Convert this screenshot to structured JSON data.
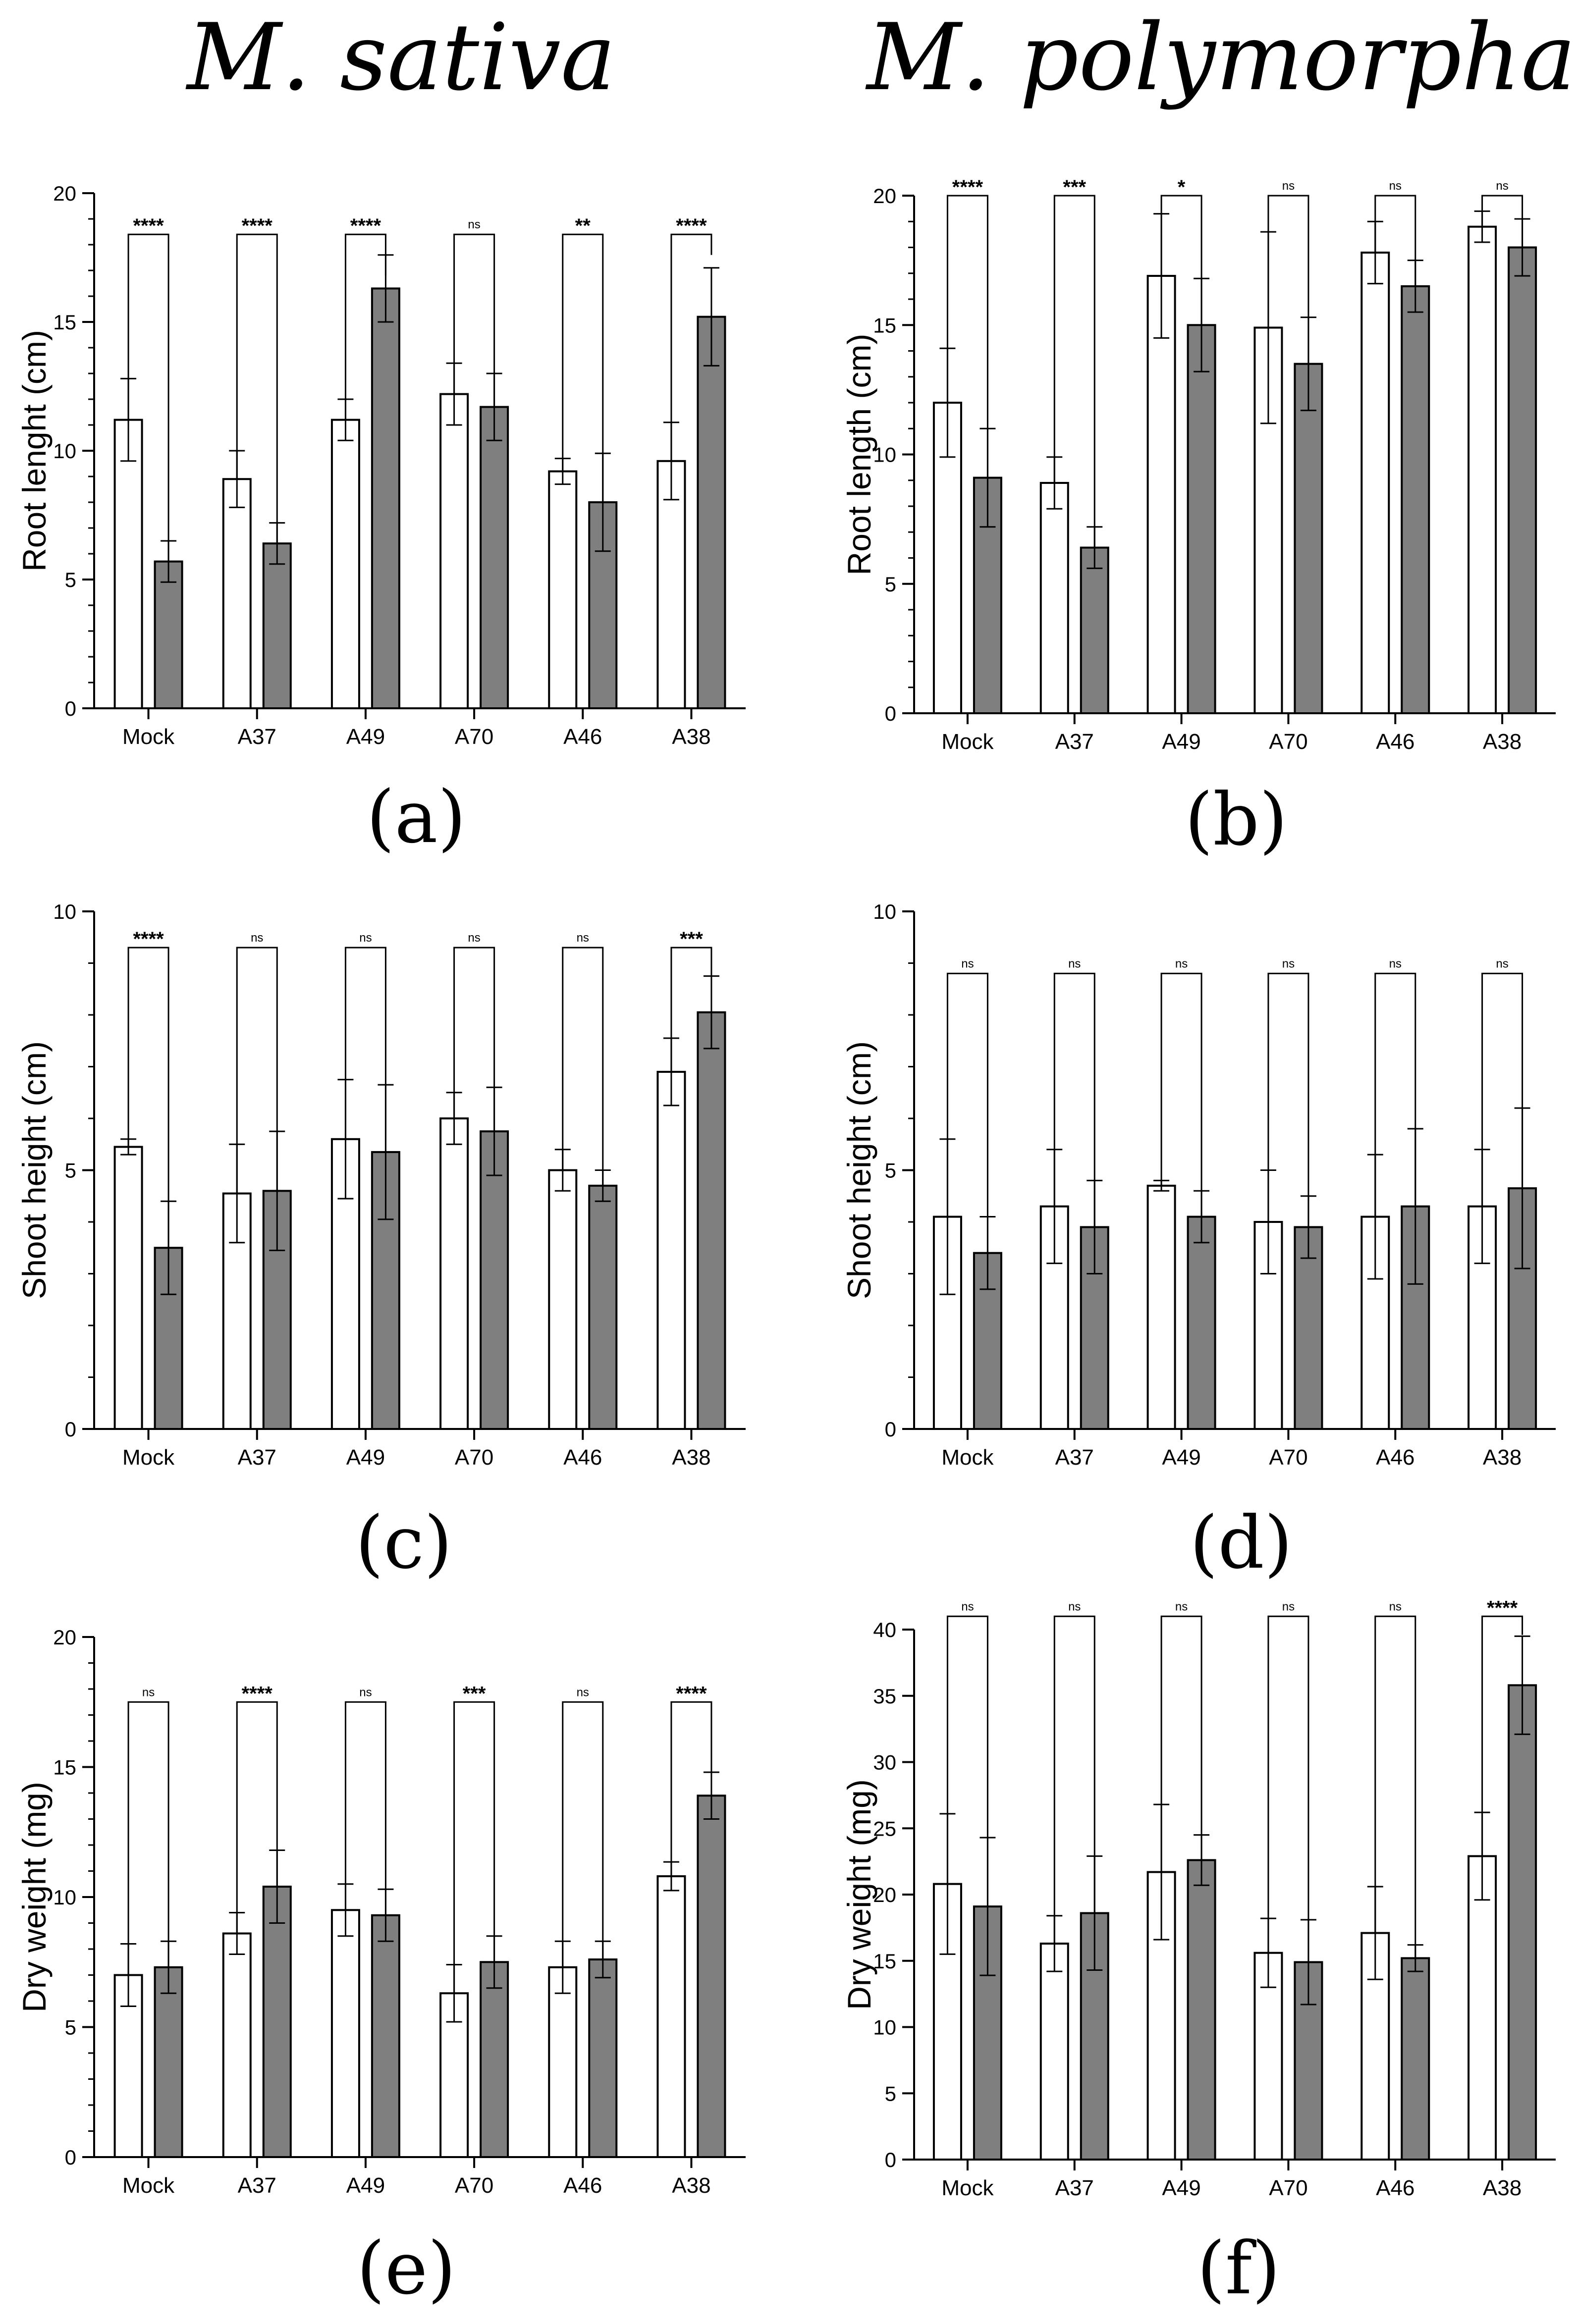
{
  "column_titles": [
    "M. sativa",
    "M. polymorpha"
  ],
  "colors": {
    "control": "#ffffff",
    "treated": "#7f7f7f",
    "stroke": "#000000"
  },
  "chart_data": [
    {
      "id": "a",
      "type": "bar",
      "panel_label": "(a)",
      "species": "M. sativa",
      "ylabel": "Root lenght (cm)",
      "xlabel": "",
      "ylim": [
        0,
        20
      ],
      "yticks": [
        0,
        5,
        10,
        15,
        20
      ],
      "categories": [
        "Mock",
        "A37",
        "A49",
        "A70",
        "A46",
        "A38"
      ],
      "series": [
        {
          "name": "control",
          "values": [
            11.2,
            8.9,
            11.2,
            12.2,
            9.2,
            9.6
          ],
          "errors": [
            1.6,
            1.1,
            0.8,
            1.2,
            0.5,
            1.5
          ]
        },
        {
          "name": "treated",
          "values": [
            5.7,
            6.4,
            16.3,
            11.7,
            8.0,
            15.2
          ],
          "errors": [
            0.8,
            0.8,
            1.3,
            1.3,
            1.9,
            1.9
          ]
        }
      ],
      "significance": [
        "****",
        "****",
        "****",
        "ns",
        "**",
        "****"
      ],
      "bracket_y": 18.4,
      "bracket_drops": [
        [
          11.2,
          5.7
        ],
        [
          8.9,
          6.4
        ],
        [
          11.2,
          16.8
        ],
        [
          12.2,
          11.7
        ],
        [
          9.2,
          8.0
        ],
        [
          9.6,
          17.6
        ]
      ]
    },
    {
      "id": "b",
      "type": "bar",
      "panel_label": "(b)",
      "species": "M. polymorpha",
      "ylabel": "Root length (cm)",
      "xlabel": "",
      "ylim": [
        0,
        20
      ],
      "yticks": [
        0,
        5,
        10,
        15,
        20
      ],
      "categories": [
        "Mock",
        "A37",
        "A49",
        "A70",
        "A46",
        "A38"
      ],
      "series": [
        {
          "name": "control",
          "values": [
            12.0,
            8.9,
            16.9,
            14.9,
            17.8,
            18.8
          ],
          "errors": [
            2.1,
            1.0,
            2.4,
            3.7,
            1.2,
            0.6
          ]
        },
        {
          "name": "treated",
          "values": [
            9.1,
            6.4,
            15.0,
            13.5,
            16.5,
            18.0
          ],
          "errors": [
            1.9,
            0.8,
            1.8,
            1.8,
            1.0,
            1.1
          ]
        }
      ],
      "significance": [
        "****",
        "***",
        "*",
        "ns",
        "ns",
        "ns"
      ],
      "bracket_y": 20.0,
      "bracket_drops": [
        [
          12.0,
          9.1
        ],
        [
          8.9,
          6.4
        ],
        [
          16.9,
          15.0
        ],
        [
          14.9,
          13.5
        ],
        [
          17.8,
          16.5
        ],
        [
          18.8,
          18.0
        ]
      ]
    },
    {
      "id": "c",
      "type": "bar",
      "panel_label": "(c)",
      "species": "M. sativa",
      "ylabel": "Shoot height (cm)",
      "xlabel": "",
      "ylim": [
        0,
        10
      ],
      "yticks": [
        0,
        5,
        10
      ],
      "categories": [
        "Mock",
        "A37",
        "A49",
        "A70",
        "A46",
        "A38"
      ],
      "series": [
        {
          "name": "control",
          "values": [
            5.45,
            4.55,
            5.6,
            6.0,
            5.0,
            6.9
          ],
          "errors": [
            0.15,
            0.95,
            1.15,
            0.5,
            0.4,
            0.65
          ]
        },
        {
          "name": "treated",
          "values": [
            3.5,
            4.6,
            5.35,
            5.75,
            4.7,
            8.05
          ],
          "errors": [
            0.9,
            1.15,
            1.3,
            0.85,
            0.3,
            0.7
          ]
        }
      ],
      "significance": [
        "****",
        "ns",
        "ns",
        "ns",
        "ns",
        "***"
      ],
      "bracket_y": 9.3,
      "bracket_drops": [
        [
          5.45,
          3.5
        ],
        [
          4.55,
          4.6
        ],
        [
          5.6,
          5.35
        ],
        [
          6.0,
          5.75
        ],
        [
          5.0,
          4.7
        ],
        [
          6.9,
          8.75
        ]
      ]
    },
    {
      "id": "d",
      "type": "bar",
      "panel_label": "(d)",
      "species": "M. polymorpha",
      "ylabel": "Shoot height (cm)",
      "xlabel": "",
      "ylim": [
        0,
        10
      ],
      "yticks": [
        0,
        5,
        10
      ],
      "categories": [
        "Mock",
        "A37",
        "A49",
        "A70",
        "A46",
        "A38"
      ],
      "series": [
        {
          "name": "control",
          "values": [
            4.1,
            4.3,
            4.7,
            4.0,
            4.1,
            4.3
          ],
          "errors": [
            1.5,
            1.1,
            0.1,
            1.0,
            1.2,
            1.1
          ]
        },
        {
          "name": "treated",
          "values": [
            3.4,
            3.9,
            4.1,
            3.9,
            4.3,
            4.65
          ],
          "errors": [
            0.7,
            0.9,
            0.5,
            0.6,
            1.5,
            1.55
          ]
        }
      ],
      "significance": [
        "ns",
        "ns",
        "ns",
        "ns",
        "ns",
        "ns"
      ],
      "bracket_y": 8.8,
      "bracket_drops": [
        [
          4.1,
          3.4
        ],
        [
          4.3,
          3.9
        ],
        [
          4.7,
          4.1
        ],
        [
          4.0,
          3.9
        ],
        [
          4.1,
          4.3
        ],
        [
          4.3,
          4.65
        ]
      ]
    },
    {
      "id": "e",
      "type": "bar",
      "panel_label": "(e)",
      "species": "M. sativa",
      "ylabel": "Dry weight (mg)",
      "xlabel": "",
      "ylim": [
        0,
        20
      ],
      "yticks": [
        0,
        5,
        10,
        15,
        20
      ],
      "categories": [
        "Mock",
        "A37",
        "A49",
        "A70",
        "A46",
        "A38"
      ],
      "series": [
        {
          "name": "control",
          "values": [
            7.0,
            8.6,
            9.5,
            6.3,
            7.3,
            10.8
          ],
          "errors": [
            1.2,
            0.8,
            1.0,
            1.1,
            1.0,
            0.55
          ]
        },
        {
          "name": "treated",
          "values": [
            7.3,
            10.4,
            9.3,
            7.5,
            7.6,
            13.9
          ],
          "errors": [
            1.0,
            1.4,
            1.0,
            1.0,
            0.7,
            0.9
          ]
        }
      ],
      "significance": [
        "ns",
        "****",
        "ns",
        "***",
        "ns",
        "****"
      ],
      "bracket_y": 17.5,
      "bracket_drops": [
        [
          7.0,
          7.3
        ],
        [
          8.6,
          10.4
        ],
        [
          9.5,
          9.3
        ],
        [
          6.3,
          7.5
        ],
        [
          7.3,
          7.6
        ],
        [
          10.8,
          14.8
        ]
      ]
    },
    {
      "id": "f",
      "type": "bar",
      "panel_label": "(f)",
      "species": "M. polymorpha",
      "ylabel": "Dry weight (mg)",
      "xlabel": "",
      "ylim": [
        0,
        40
      ],
      "yticks": [
        0,
        5,
        10,
        15,
        20,
        25,
        30,
        35,
        40
      ],
      "categories": [
        "Mock",
        "A37",
        "A49",
        "A70",
        "A46",
        "A38"
      ],
      "series": [
        {
          "name": "control",
          "values": [
            20.8,
            16.3,
            21.7,
            15.6,
            17.1,
            22.9
          ],
          "errors": [
            5.3,
            2.1,
            5.1,
            2.6,
            3.5,
            3.3
          ]
        },
        {
          "name": "treated",
          "values": [
            19.1,
            18.6,
            22.6,
            14.9,
            15.2,
            35.8
          ],
          "errors": [
            5.2,
            4.3,
            1.9,
            3.2,
            1.0,
            3.7
          ]
        }
      ],
      "significance": [
        "ns",
        "ns",
        "ns",
        "ns",
        "ns",
        "****"
      ],
      "bracket_y": 41.0,
      "bracket_drops": [
        [
          20.8,
          19.1
        ],
        [
          16.3,
          18.6
        ],
        [
          21.7,
          22.6
        ],
        [
          15.6,
          14.9
        ],
        [
          17.1,
          15.2
        ],
        [
          22.9,
          39.6
        ]
      ]
    }
  ]
}
